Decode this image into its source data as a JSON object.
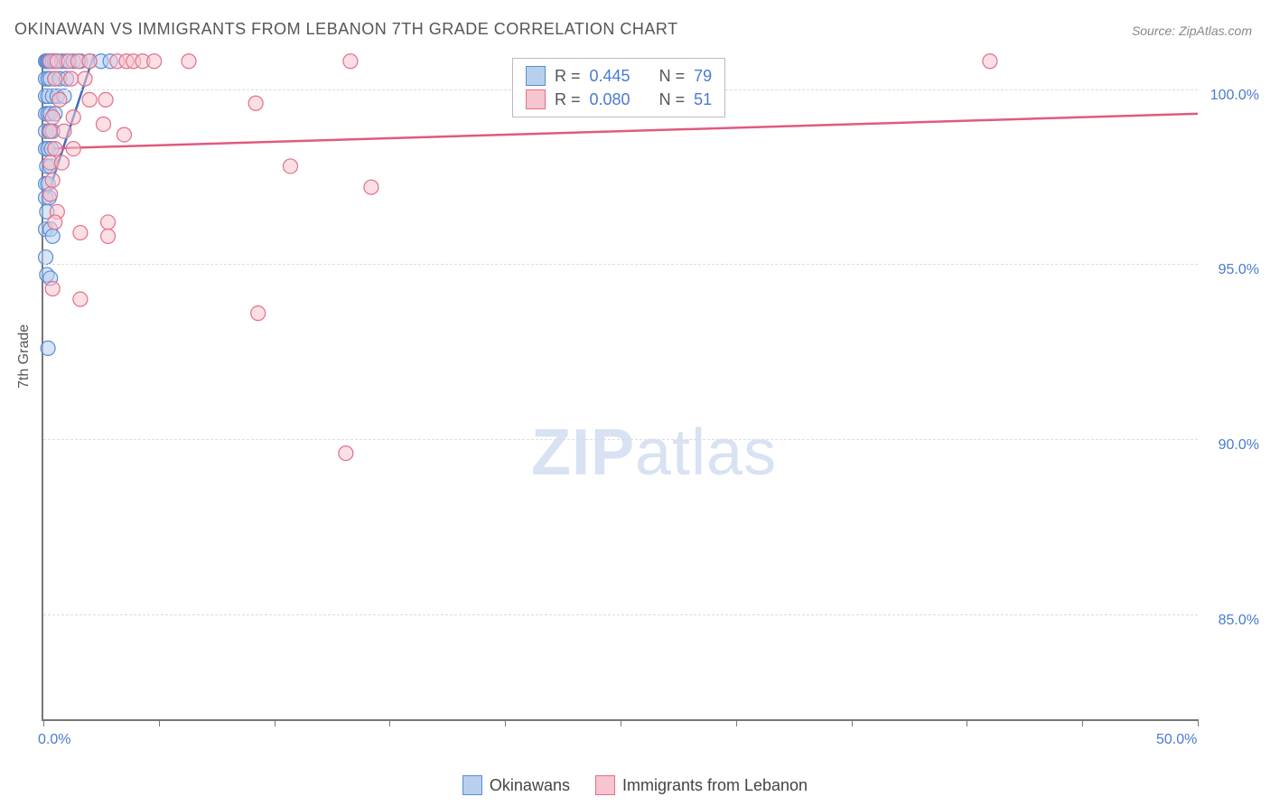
{
  "title": "OKINAWAN VS IMMIGRANTS FROM LEBANON 7TH GRADE CORRELATION CHART",
  "source": "Source: ZipAtlas.com",
  "ylabel": "7th Grade",
  "watermark_bold": "ZIP",
  "watermark_rest": "atlas",
  "chart": {
    "type": "scatter",
    "xlim": [
      0,
      50
    ],
    "ylim": [
      82,
      101
    ],
    "x_ticks": [
      0,
      5,
      10,
      15,
      20,
      25,
      30,
      35,
      40,
      45,
      50
    ],
    "x_tick_labels": {
      "0": "0.0%",
      "50": "50.0%"
    },
    "y_gridlines": [
      85,
      90,
      95,
      100
    ],
    "y_tick_labels": {
      "85": "85.0%",
      "90": "90.0%",
      "95": "95.0%",
      "100": "100.0%"
    },
    "grid_color": "#dddddd",
    "axis_color": "#777777",
    "background_color": "#ffffff",
    "tick_label_color": "#4a7bd0",
    "series": [
      {
        "name": "Okinawans",
        "marker_color_fill": "#b8d0ee",
        "marker_color_stroke": "#5a8bd8",
        "marker_radius": 8,
        "fill_opacity": 0.55,
        "line_color": "#3d6db8",
        "line_width": 2.5,
        "R": "0.445",
        "N": "79",
        "regression": {
          "x1": 0.2,
          "y1": 97.0,
          "x2": 2.2,
          "y2": 101.0
        },
        "points": [
          [
            0.1,
            100.8
          ],
          [
            0.15,
            100.8
          ],
          [
            0.2,
            100.8
          ],
          [
            0.25,
            100.8
          ],
          [
            0.3,
            100.8
          ],
          [
            0.4,
            100.8
          ],
          [
            0.5,
            100.8
          ],
          [
            0.6,
            100.8
          ],
          [
            0.8,
            100.8
          ],
          [
            1.0,
            100.8
          ],
          [
            1.3,
            100.8
          ],
          [
            1.6,
            100.8
          ],
          [
            2.0,
            100.8
          ],
          [
            2.5,
            100.8
          ],
          [
            2.9,
            100.8
          ],
          [
            0.1,
            100.3
          ],
          [
            0.2,
            100.3
          ],
          [
            0.3,
            100.3
          ],
          [
            0.5,
            100.3
          ],
          [
            0.7,
            100.3
          ],
          [
            1.0,
            100.3
          ],
          [
            0.1,
            99.8
          ],
          [
            0.2,
            99.8
          ],
          [
            0.4,
            99.8
          ],
          [
            0.6,
            99.8
          ],
          [
            0.9,
            99.8
          ],
          [
            0.1,
            99.3
          ],
          [
            0.2,
            99.3
          ],
          [
            0.3,
            99.3
          ],
          [
            0.5,
            99.3
          ],
          [
            0.1,
            98.8
          ],
          [
            0.25,
            98.8
          ],
          [
            0.4,
            98.8
          ],
          [
            0.1,
            98.3
          ],
          [
            0.2,
            98.3
          ],
          [
            0.35,
            98.3
          ],
          [
            0.15,
            97.8
          ],
          [
            0.3,
            97.8
          ],
          [
            0.1,
            97.3
          ],
          [
            0.2,
            97.3
          ],
          [
            0.1,
            96.9
          ],
          [
            0.25,
            96.9
          ],
          [
            0.15,
            96.5
          ],
          [
            0.1,
            96.0
          ],
          [
            0.3,
            96.0
          ],
          [
            0.4,
            95.8
          ],
          [
            0.1,
            95.2
          ],
          [
            0.15,
            94.7
          ],
          [
            0.3,
            94.6
          ],
          [
            0.2,
            92.6
          ]
        ]
      },
      {
        "name": "Immigrants from Lebanon",
        "marker_color_fill": "#f6c5cf",
        "marker_color_stroke": "#e36f8a",
        "marker_radius": 8,
        "fill_opacity": 0.55,
        "line_color": "#e05a7d",
        "line_width": 2.5,
        "R": "0.080",
        "N": "51",
        "regression": {
          "x1": 0,
          "y1": 98.3,
          "x2": 50,
          "y2": 99.3
        },
        "points": [
          [
            0.3,
            100.8
          ],
          [
            0.6,
            100.8
          ],
          [
            1.1,
            100.8
          ],
          [
            1.5,
            100.8
          ],
          [
            2.0,
            100.8
          ],
          [
            3.2,
            100.8
          ],
          [
            3.6,
            100.8
          ],
          [
            3.9,
            100.8
          ],
          [
            4.3,
            100.8
          ],
          [
            4.8,
            100.8
          ],
          [
            6.3,
            100.8
          ],
          [
            13.3,
            100.8
          ],
          [
            41.0,
            100.8
          ],
          [
            0.5,
            100.3
          ],
          [
            1.2,
            100.3
          ],
          [
            1.8,
            100.3
          ],
          [
            0.7,
            99.7
          ],
          [
            2.0,
            99.7
          ],
          [
            2.7,
            99.7
          ],
          [
            9.2,
            99.6
          ],
          [
            0.4,
            99.2
          ],
          [
            1.3,
            99.2
          ],
          [
            2.6,
            99.0
          ],
          [
            0.3,
            98.8
          ],
          [
            0.9,
            98.8
          ],
          [
            3.5,
            98.7
          ],
          [
            0.5,
            98.3
          ],
          [
            1.3,
            98.3
          ],
          [
            0.3,
            97.9
          ],
          [
            0.8,
            97.9
          ],
          [
            10.7,
            97.8
          ],
          [
            0.4,
            97.4
          ],
          [
            14.2,
            97.2
          ],
          [
            0.3,
            97.0
          ],
          [
            0.6,
            96.5
          ],
          [
            0.5,
            96.2
          ],
          [
            2.8,
            96.2
          ],
          [
            1.6,
            95.9
          ],
          [
            2.8,
            95.8
          ],
          [
            0.4,
            94.3
          ],
          [
            1.6,
            94.0
          ],
          [
            9.3,
            93.6
          ],
          [
            13.1,
            89.6
          ]
        ]
      }
    ]
  },
  "legend": {
    "series1_label": "Okinawans",
    "series2_label": "Immigrants from Lebanon"
  },
  "stats_labels": {
    "R": "R =",
    "N": "N ="
  }
}
